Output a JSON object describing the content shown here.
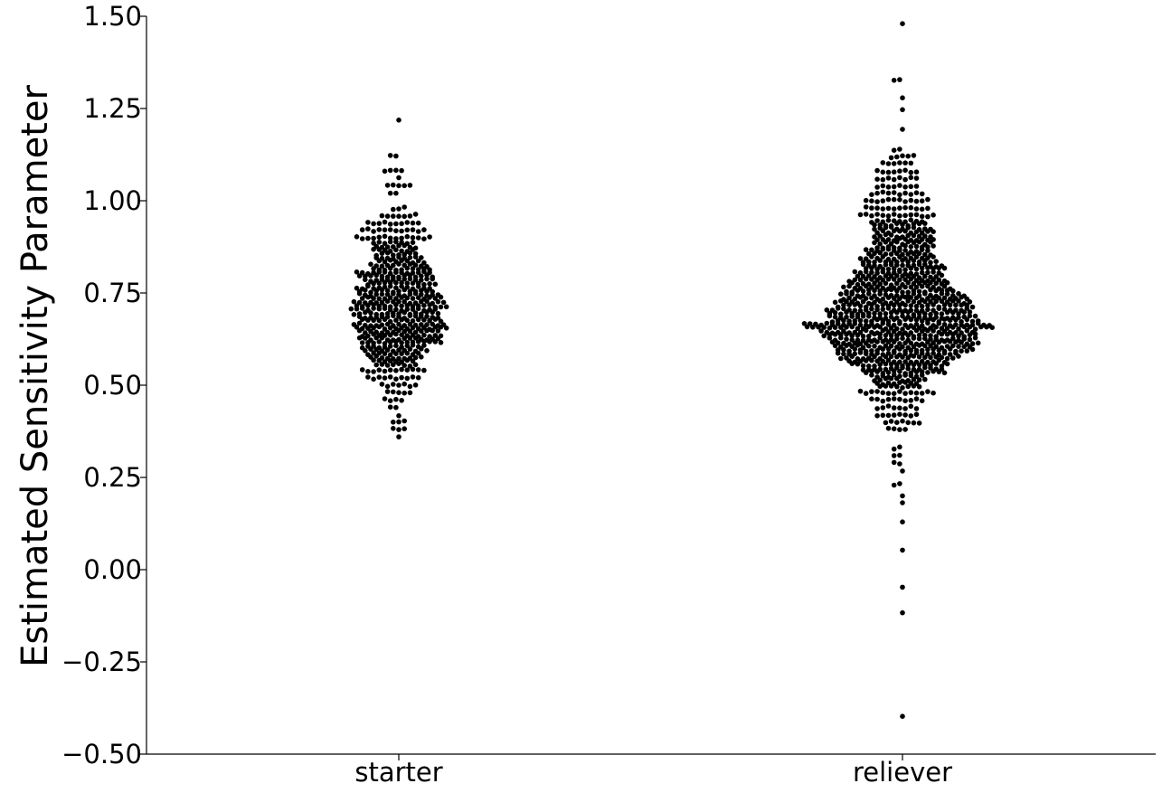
{
  "chart_data": {
    "type": "swarm",
    "ylabel": "Estimated Sensitivity Parameter",
    "xlabel": "",
    "ylim": [
      -0.5,
      1.5
    ],
    "yticks": [
      {
        "value": -0.5,
        "label": "−0.50"
      },
      {
        "value": -0.25,
        "label": "−0.25"
      },
      {
        "value": 0.0,
        "label": "0.00"
      },
      {
        "value": 0.25,
        "label": "0.25"
      },
      {
        "value": 0.5,
        "label": "0.50"
      },
      {
        "value": 0.75,
        "label": "0.75"
      },
      {
        "value": 1.0,
        "label": "1.00"
      },
      {
        "value": 1.25,
        "label": "1.25"
      },
      {
        "value": 1.5,
        "label": "1.50"
      }
    ],
    "categories": [
      "starter",
      "reliever"
    ],
    "marker_color": "#000000",
    "grid": false,
    "series": [
      {
        "category": "starter",
        "approx_count": 520,
        "min": 0.36,
        "max": 1.22,
        "center": 0.72,
        "distribution": [
          {
            "y": 0.36,
            "count": 1
          },
          {
            "y": 0.38,
            "count": 3
          },
          {
            "y": 0.4,
            "count": 3
          },
          {
            "y": 0.42,
            "count": 1
          },
          {
            "y": 0.44,
            "count": 2
          },
          {
            "y": 0.46,
            "count": 4
          },
          {
            "y": 0.48,
            "count": 5
          },
          {
            "y": 0.5,
            "count": 7
          },
          {
            "y": 0.52,
            "count": 10
          },
          {
            "y": 0.54,
            "count": 12
          },
          {
            "y": 0.56,
            "count": 16
          },
          {
            "y": 0.58,
            "count": 20
          },
          {
            "y": 0.6,
            "count": 24
          },
          {
            "y": 0.62,
            "count": 30
          },
          {
            "y": 0.64,
            "count": 30
          },
          {
            "y": 0.66,
            "count": 34
          },
          {
            "y": 0.68,
            "count": 30
          },
          {
            "y": 0.7,
            "count": 32
          },
          {
            "y": 0.72,
            "count": 34
          },
          {
            "y": 0.74,
            "count": 30
          },
          {
            "y": 0.76,
            "count": 28
          },
          {
            "y": 0.78,
            "count": 26
          },
          {
            "y": 0.8,
            "count": 28
          },
          {
            "y": 0.82,
            "count": 22
          },
          {
            "y": 0.84,
            "count": 18
          },
          {
            "y": 0.86,
            "count": 16
          },
          {
            "y": 0.88,
            "count": 16
          },
          {
            "y": 0.9,
            "count": 14
          },
          {
            "y": 0.92,
            "count": 12
          },
          {
            "y": 0.94,
            "count": 10
          },
          {
            "y": 0.96,
            "count": 7
          },
          {
            "y": 0.98,
            "count": 3
          },
          {
            "y": 1.02,
            "count": 2
          },
          {
            "y": 1.04,
            "count": 5
          },
          {
            "y": 1.06,
            "count": 1
          },
          {
            "y": 1.08,
            "count": 4
          },
          {
            "y": 1.12,
            "count": 2
          },
          {
            "y": 1.22,
            "count": 1
          }
        ]
      },
      {
        "category": "reliever",
        "approx_count": 1150,
        "min": -0.4,
        "max": 1.48,
        "center": 0.66,
        "distribution": [
          {
            "y": -0.4,
            "count": 1
          },
          {
            "y": -0.12,
            "count": 1
          },
          {
            "y": -0.05,
            "count": 1
          },
          {
            "y": 0.05,
            "count": 1
          },
          {
            "y": 0.13,
            "count": 1
          },
          {
            "y": 0.18,
            "count": 1
          },
          {
            "y": 0.2,
            "count": 1
          },
          {
            "y": 0.23,
            "count": 2
          },
          {
            "y": 0.27,
            "count": 1
          },
          {
            "y": 0.29,
            "count": 2
          },
          {
            "y": 0.31,
            "count": 2
          },
          {
            "y": 0.33,
            "count": 2
          },
          {
            "y": 0.38,
            "count": 4
          },
          {
            "y": 0.4,
            "count": 7
          },
          {
            "y": 0.42,
            "count": 8
          },
          {
            "y": 0.44,
            "count": 8
          },
          {
            "y": 0.46,
            "count": 10
          },
          {
            "y": 0.48,
            "count": 14
          },
          {
            "y": 0.5,
            "count": 16
          },
          {
            "y": 0.52,
            "count": 20
          },
          {
            "y": 0.54,
            "count": 30
          },
          {
            "y": 0.56,
            "count": 36
          },
          {
            "y": 0.58,
            "count": 44
          },
          {
            "y": 0.6,
            "count": 50
          },
          {
            "y": 0.62,
            "count": 54
          },
          {
            "y": 0.64,
            "count": 56
          },
          {
            "y": 0.66,
            "count": 68
          },
          {
            "y": 0.68,
            "count": 54
          },
          {
            "y": 0.7,
            "count": 52
          },
          {
            "y": 0.72,
            "count": 50
          },
          {
            "y": 0.74,
            "count": 46
          },
          {
            "y": 0.76,
            "count": 40
          },
          {
            "y": 0.78,
            "count": 36
          },
          {
            "y": 0.8,
            "count": 32
          },
          {
            "y": 0.82,
            "count": 30
          },
          {
            "y": 0.84,
            "count": 28
          },
          {
            "y": 0.86,
            "count": 24
          },
          {
            "y": 0.88,
            "count": 22
          },
          {
            "y": 0.9,
            "count": 22
          },
          {
            "y": 0.92,
            "count": 22
          },
          {
            "y": 0.94,
            "count": 20
          },
          {
            "y": 0.96,
            "count": 14
          },
          {
            "y": 0.98,
            "count": 12
          },
          {
            "y": 1.0,
            "count": 12
          },
          {
            "y": 1.02,
            "count": 10
          },
          {
            "y": 1.04,
            "count": 8
          },
          {
            "y": 1.06,
            "count": 8
          },
          {
            "y": 1.08,
            "count": 8
          },
          {
            "y": 1.1,
            "count": 6
          },
          {
            "y": 1.12,
            "count": 5
          },
          {
            "y": 1.14,
            "count": 2
          },
          {
            "y": 1.19,
            "count": 1
          },
          {
            "y": 1.25,
            "count": 1
          },
          {
            "y": 1.28,
            "count": 1
          },
          {
            "y": 1.33,
            "count": 2
          },
          {
            "y": 1.48,
            "count": 1
          }
        ]
      }
    ]
  }
}
